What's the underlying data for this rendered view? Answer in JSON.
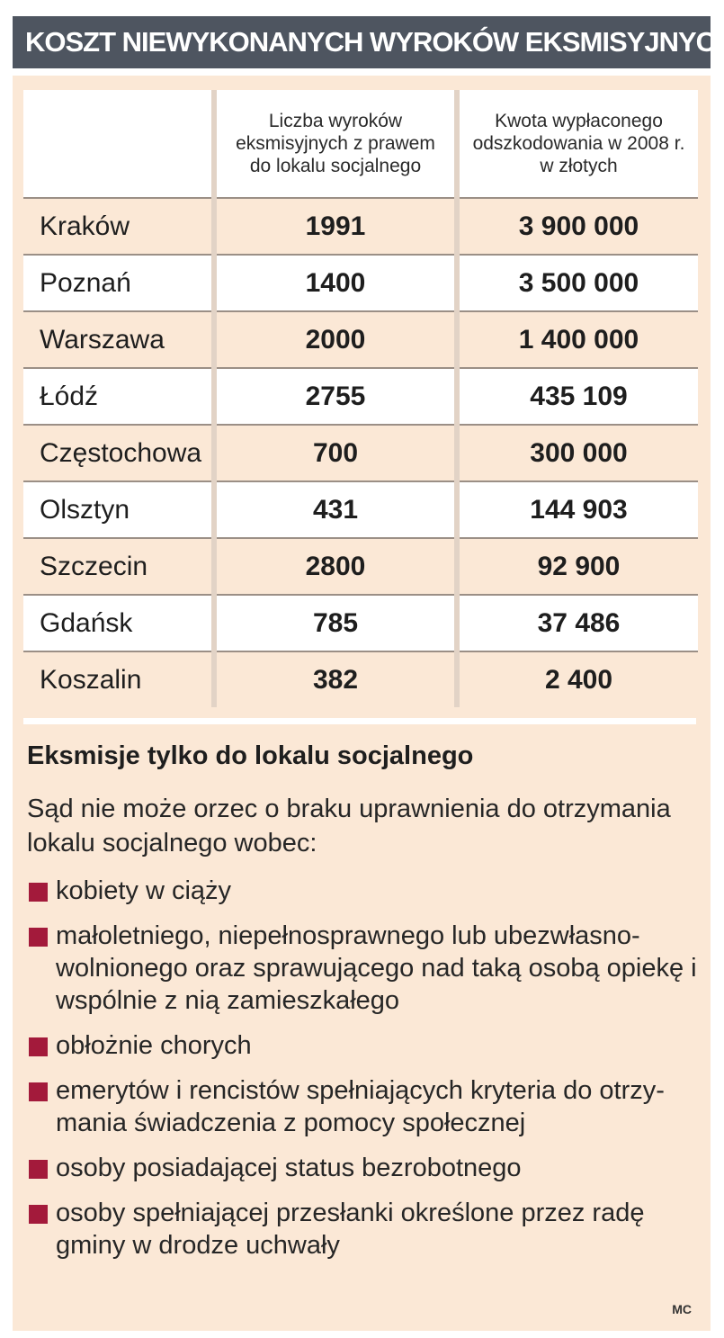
{
  "title": "KOSZT NIEWYKONANYCH WYROKÓW EKSMISYJNYCH",
  "table": {
    "headers": [
      "",
      "Liczba wyroków eksmisyjnych z prawem do lokalu socjalnego",
      "Kwota wypłaconego odszkodowania w 2008 r. w złotych"
    ],
    "rows": [
      {
        "city": "Kraków",
        "count": "1991",
        "amount": "3 900 000"
      },
      {
        "city": "Poznań",
        "count": "1400",
        "amount": "3 500 000"
      },
      {
        "city": "Warszawa",
        "count": "2000",
        "amount": "1 400 000"
      },
      {
        "city": "Łódź",
        "count": "2755",
        "amount": "435 109"
      },
      {
        "city": "Częstochowa",
        "count": "700",
        "amount": "300 000"
      },
      {
        "city": "Olsztyn",
        "count": "431",
        "amount": "144 903"
      },
      {
        "city": "Szczecin",
        "count": "2800",
        "amount": "92 900"
      },
      {
        "city": "Gdańsk",
        "count": "785",
        "amount": "37 486"
      },
      {
        "city": "Koszalin",
        "count": "382",
        "amount": "2 400"
      }
    ]
  },
  "section": {
    "title": "Eksmisje tylko do lokalu socjalnego",
    "intro": "Sąd nie może orzec o braku uprawnienia do otrzymania lokalu socjalnego wobec:",
    "items": [
      "kobiety w ciąży",
      "małoletniego, niepełnosprawnego lub ubezwłasno-wolnionego oraz sprawującego nad taką osobą opiekę i wspólnie z nią zamieszkałego",
      "obłożnie chorych",
      "emerytów i rencistów spełniających kryteria do otrzy-mania świadczenia z pomocy społecznej",
      "osoby posiadającej status bezrobotnego",
      "osoby spełniającej przesłanki określone przez radę gminy w drodze uchwały"
    ]
  },
  "credit": "MC",
  "colors": {
    "banner": "#4e5560",
    "panel": "#fbe8d6",
    "bullet": "#a31a3b"
  },
  "chart_data": {
    "type": "table",
    "title": "KOSZT NIEWYKONANYCH WYROKÓW EKSMISYJNYCH",
    "columns": [
      "",
      "Liczba wyroków eksmisyjnych z prawem do lokalu socjalnego",
      "Kwota wypłaconego odszkodowania w 2008 r. w złotych"
    ],
    "categories": [
      "Kraków",
      "Poznań",
      "Warszawa",
      "Łódź",
      "Częstochowa",
      "Olsztyn",
      "Szczecin",
      "Gdańsk",
      "Koszalin"
    ],
    "series": [
      {
        "name": "Liczba wyroków eksmisyjnych z prawem do lokalu socjalnego",
        "values": [
          1991,
          1400,
          2000,
          2755,
          700,
          431,
          2800,
          785,
          382
        ]
      },
      {
        "name": "Kwota wypłaconego odszkodowania w 2008 r. w złotych",
        "values": [
          3900000,
          3500000,
          1400000,
          435109,
          300000,
          144903,
          92900,
          37486,
          2400
        ]
      }
    ]
  }
}
